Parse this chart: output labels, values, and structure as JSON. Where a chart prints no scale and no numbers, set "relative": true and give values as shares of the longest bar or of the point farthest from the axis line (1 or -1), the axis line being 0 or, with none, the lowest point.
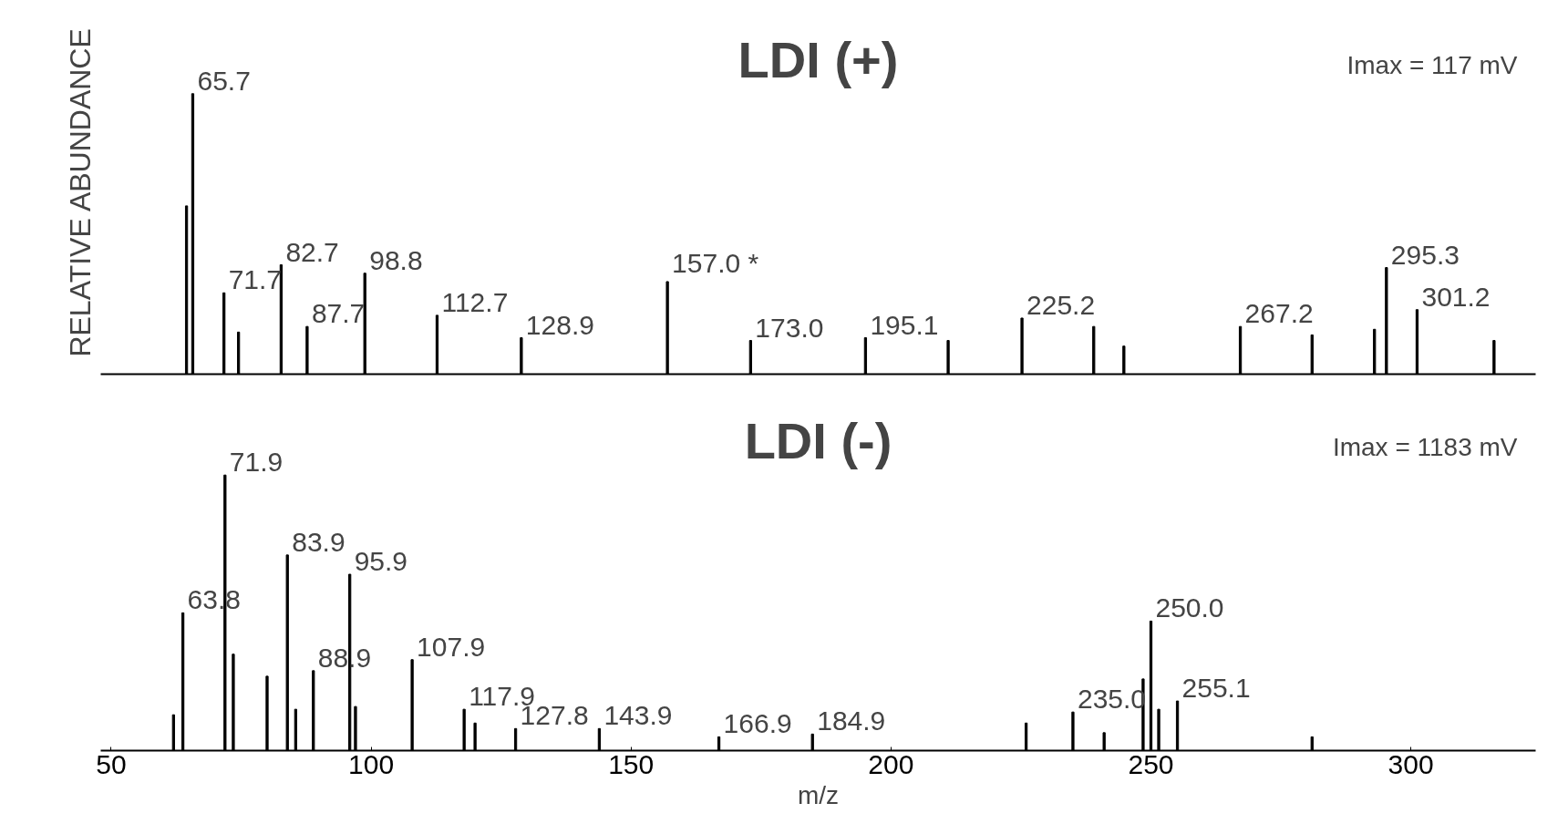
{
  "chart_data": [
    {
      "type": "bar",
      "title": "LDI (+)",
      "ylabel": "RELATIVE ABUNDANCE",
      "relative": true,
      "xlim": [
        48,
        324
      ],
      "tick_labels": false,
      "grid": false,
      "x": [
        64.5,
        65.7,
        71.7,
        74.5,
        82.7,
        87.7,
        98.8,
        112.7,
        128.9,
        157.0,
        173.0,
        195.1,
        211,
        225.2,
        239,
        244.8,
        267.2,
        281,
        293,
        295.3,
        301.2,
        316
      ],
      "series": [
        {
          "color": "#000000",
          "values": [
            0.6,
            1.0,
            0.29,
            0.15,
            0.39,
            0.17,
            0.36,
            0.21,
            0.13,
            0.33,
            0.12,
            0.13,
            0.12,
            0.2,
            0.17,
            0.1,
            0.17,
            0.14,
            0.16,
            0.38,
            0.23,
            0.12
          ]
        }
      ],
      "annotations": [
        {
          "text": "65.7",
          "x": 65.7,
          "y": 1.0
        },
        {
          "text": "71.7",
          "x": 71.7,
          "y": 0.29
        },
        {
          "text": "82.7",
          "x": 82.7,
          "y": 0.39
        },
        {
          "text": "87.7",
          "x": 87.7,
          "y": 0.17
        },
        {
          "text": "98.8",
          "x": 98.8,
          "y": 0.36
        },
        {
          "text": "112.7",
          "x": 112.7,
          "y": 0.21
        },
        {
          "text": "128.9",
          "x": 128.9,
          "y": 0.13
        },
        {
          "text": "157.0 *",
          "x": 157.0,
          "y": 0.33
        },
        {
          "text": "173.0",
          "x": 173.0,
          "y": 0.12
        },
        {
          "text": "195.1",
          "x": 195.1,
          "y": 0.13
        },
        {
          "text": "225.2",
          "x": 225.2,
          "y": 0.2
        },
        {
          "text": "267.2",
          "x": 267.2,
          "y": 0.17
        },
        {
          "text": "295.3",
          "x": 295.3,
          "y": 0.38
        },
        {
          "text": "301.2",
          "x": 301.2,
          "y": 0.23
        },
        "Imax = 117 mV"
      ]
    },
    {
      "type": "bar",
      "title": "LDI (-)",
      "xlabel": "m/z",
      "relative": true,
      "xlim": [
        48,
        324
      ],
      "xticks": [
        50,
        100,
        150,
        200,
        250,
        300
      ],
      "tick_labels": "x",
      "grid": false,
      "x": [
        62,
        63.8,
        71.9,
        73.5,
        80,
        83.9,
        85.5,
        88.9,
        95.9,
        97,
        107.9,
        117.9,
        120,
        127.8,
        143.9,
        166.9,
        184.9,
        226,
        235.0,
        241,
        248.5,
        250.0,
        251.5,
        255.1,
        281
      ],
      "series": [
        {
          "color": "#000000",
          "values": [
            0.13,
            0.5,
            1.0,
            0.35,
            0.27,
            0.71,
            0.15,
            0.29,
            0.64,
            0.16,
            0.33,
            0.15,
            0.1,
            0.08,
            0.08,
            0.05,
            0.06,
            0.1,
            0.14,
            0.065,
            0.26,
            0.47,
            0.15,
            0.18,
            0.05
          ]
        }
      ],
      "annotations": [
        {
          "text": "63.8",
          "x": 63.8,
          "y": 0.5
        },
        {
          "text": "71.9",
          "x": 71.9,
          "y": 1.0
        },
        {
          "text": "83.9",
          "x": 83.9,
          "y": 0.71
        },
        {
          "text": "88.9",
          "x": 88.9,
          "y": 0.29
        },
        {
          "text": "95.9",
          "x": 95.9,
          "y": 0.64
        },
        {
          "text": "107.9",
          "x": 107.9,
          "y": 0.33
        },
        {
          "text": "117.9",
          "x": 117.9,
          "y": 0.15
        },
        {
          "text": "127.8",
          "x": 127.8,
          "y": 0.08
        },
        {
          "text": "143.9",
          "x": 143.9,
          "y": 0.08
        },
        {
          "text": "166.9",
          "x": 166.9,
          "y": 0.05
        },
        {
          "text": "184.9",
          "x": 184.9,
          "y": 0.06
        },
        {
          "text": "235.0",
          "x": 235.0,
          "y": 0.14
        },
        {
          "text": "250.0",
          "x": 250.0,
          "y": 0.47
        },
        {
          "text": "255.1",
          "x": 255.1,
          "y": 0.18
        },
        "Imax = 1183 mV"
      ]
    }
  ]
}
